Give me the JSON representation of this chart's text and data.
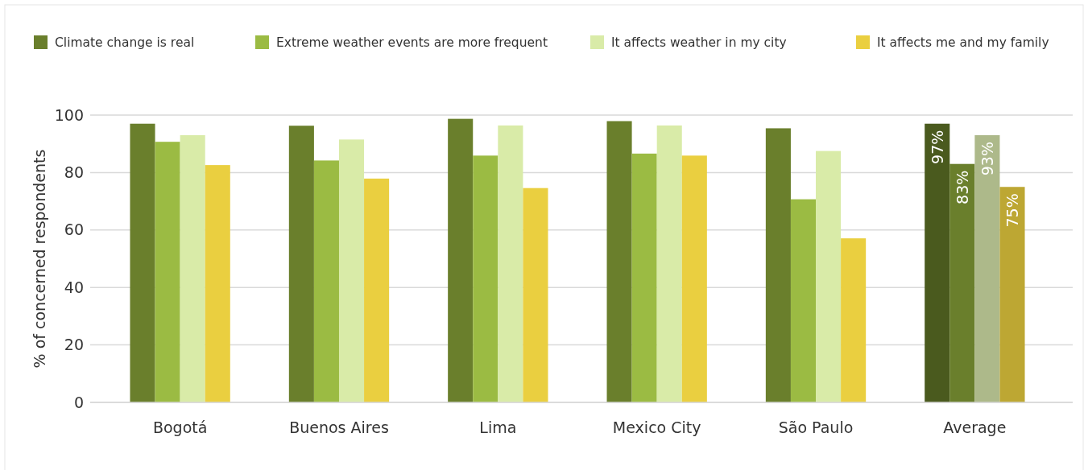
{
  "chart_data": {
    "type": "bar",
    "ylabel": "% of concerned respondents",
    "categories": [
      "Bogotá",
      "Buenos Aires",
      "Lima",
      "Mexico City",
      "São Paulo",
      "Average"
    ],
    "series": [
      {
        "name": "Climate change is real",
        "color": "#6a7f2c",
        "colors": [
          "#6a7f2c",
          "#6a7f2c",
          "#6a7f2c",
          "#6a7f2c",
          "#6a7f2c",
          "#4a5a1e"
        ],
        "values": [
          97,
          96.3,
          98.7,
          97.9,
          95.4,
          97
        ],
        "value_labels": [
          null,
          null,
          null,
          null,
          null,
          "97%"
        ]
      },
      {
        "name": "Extreme weather events are more frequent",
        "color": "#9bbb43",
        "colors": [
          "#9bbb43",
          "#9bbb43",
          "#9bbb43",
          "#9bbb43",
          "#9bbb43",
          "#6a7f2c"
        ],
        "values": [
          90.7,
          84.2,
          85.9,
          86.6,
          70.7,
          83
        ],
        "value_labels": [
          null,
          null,
          null,
          null,
          null,
          "83%"
        ]
      },
      {
        "name": "It affects weather in my city",
        "color": "#d9eba8",
        "colors": [
          "#d9eba8",
          "#d9eba8",
          "#d9eba8",
          "#d9eba8",
          "#d9eba8",
          "#adb98a"
        ],
        "values": [
          93,
          91.5,
          96.4,
          96.4,
          87.5,
          93
        ],
        "value_labels": [
          null,
          null,
          null,
          null,
          null,
          "93%"
        ]
      },
      {
        "name": "It affects me and my family",
        "color": "#eacf40",
        "colors": [
          "#eacf40",
          "#eacf40",
          "#eacf40",
          "#eacf40",
          "#eacf40",
          "#bda733"
        ],
        "values": [
          82.6,
          77.9,
          74.6,
          85.9,
          57.1,
          75
        ],
        "value_labels": [
          null,
          null,
          null,
          null,
          null,
          "75%"
        ]
      }
    ],
    "ylim": [
      0,
      100
    ],
    "yticks": [
      0,
      20,
      40,
      60,
      80,
      100
    ],
    "grid": "y",
    "legend": "top"
  }
}
